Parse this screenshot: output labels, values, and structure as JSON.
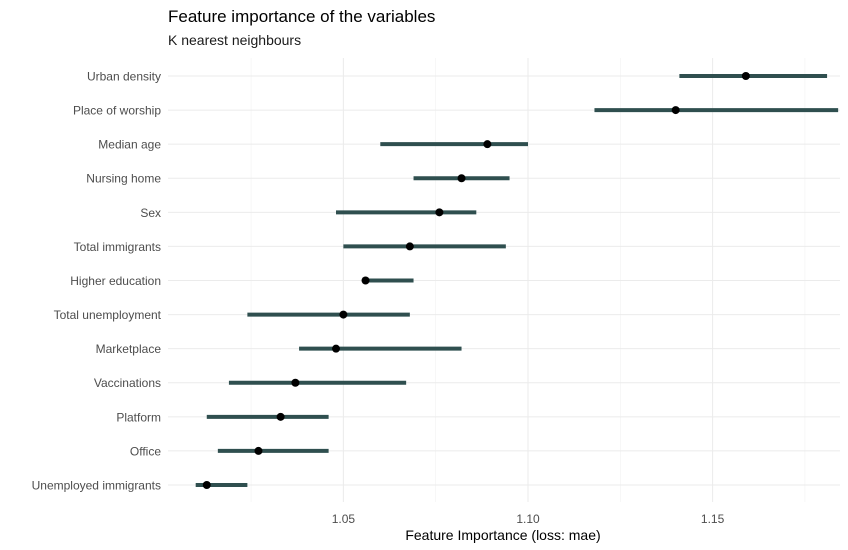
{
  "chart_data": {
    "type": "scatter",
    "title": "Feature importance of the variables",
    "subtitle": "K nearest neighbours",
    "xlabel": "Feature Importance (loss: mae)",
    "ylabel": "",
    "xlim": [
      1.0025,
      1.1845
    ],
    "x_ticks": [
      1.05,
      1.1,
      1.15
    ],
    "x_tick_labels": [
      "1.05",
      "1.10",
      "1.15"
    ],
    "grid": true,
    "legend": "none",
    "colors": {
      "interval": "#2f4f4f",
      "point": "#000000"
    },
    "categories": [
      "Urban density",
      "Place of worship",
      "Median age",
      "Nursing home",
      "Sex",
      "Total immigrants",
      "Higher education",
      "Total unemployment",
      "Marketplace",
      "Vaccinations",
      "Platform",
      "Office",
      "Unemployed immigrants"
    ],
    "points": [
      {
        "label": "Urban density",
        "estimate": 1.159,
        "low": 1.141,
        "high": 1.181
      },
      {
        "label": "Place of worship",
        "estimate": 1.14,
        "low": 1.118,
        "high": 1.184
      },
      {
        "label": "Median age",
        "estimate": 1.089,
        "low": 1.06,
        "high": 1.1
      },
      {
        "label": "Nursing home",
        "estimate": 1.082,
        "low": 1.069,
        "high": 1.095
      },
      {
        "label": "Sex",
        "estimate": 1.076,
        "low": 1.048,
        "high": 1.086
      },
      {
        "label": "Total immigrants",
        "estimate": 1.068,
        "low": 1.05,
        "high": 1.094
      },
      {
        "label": "Higher education",
        "estimate": 1.056,
        "low": 1.056,
        "high": 1.069
      },
      {
        "label": "Total unemployment",
        "estimate": 1.05,
        "low": 1.024,
        "high": 1.068
      },
      {
        "label": "Marketplace",
        "estimate": 1.048,
        "low": 1.038,
        "high": 1.082
      },
      {
        "label": "Vaccinations",
        "estimate": 1.037,
        "low": 1.019,
        "high": 1.067
      },
      {
        "label": "Platform",
        "estimate": 1.033,
        "low": 1.013,
        "high": 1.046
      },
      {
        "label": "Office",
        "estimate": 1.027,
        "low": 1.016,
        "high": 1.046
      },
      {
        "label": "Unemployed immigrants",
        "estimate": 1.013,
        "low": 1.01,
        "high": 1.024
      }
    ]
  }
}
